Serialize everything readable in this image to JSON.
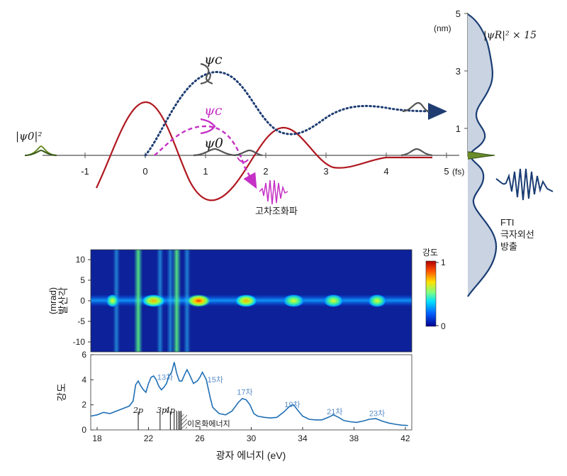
{
  "diagram": {
    "psi0_squared_label": "|ψ0|²",
    "time_axis": {
      "tick_labels": [
        "-1",
        "0",
        "1",
        "2",
        "3",
        "4",
        "5"
      ],
      "unit": "(fs)"
    },
    "labels": {
      "psi_c_upper": "ψc",
      "psi_c_lower": "ψc",
      "psi_0": "ψ0",
      "hhg": "고차조화파",
      "psi_r": "|ψR|² × 15",
      "fti_line1": "FTI",
      "fti_line2": "극자외선",
      "fti_line3": "방출"
    },
    "radial_axis": {
      "unit": "(nm)",
      "tick_labels": [
        "5",
        "3",
        "1"
      ]
    }
  },
  "spectrogram": {
    "ylabel": "발산각",
    "yunit": "(mrad)",
    "ytick_labels": [
      "10",
      "5",
      "0",
      "-5",
      "-10"
    ],
    "colorbar": {
      "title": "강도",
      "max_label": "1",
      "min_label": "0",
      "colors": [
        "#00008f",
        "#0060ff",
        "#00e0ff",
        "#7fff7f",
        "#ffe000",
        "#ff5000",
        "#b00000"
      ]
    },
    "harmonic_spot_energies_eV": [
      19.2,
      22.4,
      25.9,
      29.6,
      33.3,
      36.4,
      39.8
    ],
    "bright_lines_eV": [
      21.2,
      24.2
    ]
  },
  "chart_data": {
    "type": "line",
    "ylabel": "강도",
    "xlabel": "광자 에너지 (eV)",
    "xlim": [
      17.5,
      42.5
    ],
    "ylim": [
      0,
      6
    ],
    "x_ticks": [
      18,
      22,
      26,
      30,
      34,
      38,
      42
    ],
    "y_ticks": [
      0,
      2,
      4,
      6
    ],
    "x": [
      17.5,
      18,
      18.5,
      19,
      19.5,
      20,
      20.5,
      20.8,
      21,
      21.2,
      21.4,
      21.6,
      21.8,
      22,
      22.2,
      22.4,
      22.6,
      22.8,
      23,
      23.2,
      23.4,
      23.6,
      23.8,
      24,
      24.2,
      24.4,
      24.6,
      24.8,
      25,
      25.2,
      25.5,
      25.8,
      26,
      26.2,
      26.5,
      26.8,
      27,
      27.5,
      28,
      28.5,
      29,
      29.3,
      29.6,
      29.9,
      30.2,
      30.5,
      31,
      31.5,
      32,
      32.5,
      33,
      33.3,
      33.6,
      34,
      34.5,
      35,
      35.5,
      36,
      36.4,
      36.8,
      37.2,
      37.7,
      38.2,
      38.7,
      39.2,
      39.7,
      40.2,
      40.7,
      41.2,
      41.7,
      42.2
    ],
    "y": [
      1.1,
      1.2,
      1.4,
      1.3,
      1.5,
      1.7,
      1.9,
      2.3,
      3.6,
      3.9,
      3.5,
      3.2,
      3.0,
      3.7,
      4.2,
      4.3,
      4.0,
      3.5,
      3.2,
      3.4,
      3.7,
      4.3,
      4.6,
      5.4,
      4.5,
      3.9,
      3.9,
      4.4,
      4.8,
      4.4,
      3.7,
      3.9,
      4.2,
      4.6,
      4.0,
      2.6,
      1.8,
      1.3,
      1.2,
      1.5,
      2.2,
      2.5,
      2.4,
      2.0,
      1.3,
      1.1,
      1.0,
      0.95,
      1.0,
      1.4,
      1.9,
      2.0,
      1.6,
      1.1,
      0.85,
      0.8,
      0.8,
      1.0,
      1.2,
      1.0,
      0.75,
      0.65,
      0.6,
      0.7,
      0.85,
      0.9,
      0.7,
      0.55,
      0.45,
      0.38,
      0.35
    ],
    "annotations": [
      {
        "text": "13차",
        "x": 23.3,
        "y": 4.0
      },
      {
        "text": "15차",
        "x": 27.2,
        "y": 3.8
      },
      {
        "text": "17차",
        "x": 29.5,
        "y": 2.8
      },
      {
        "text": "19차",
        "x": 33.2,
        "y": 1.8
      },
      {
        "text": "21차",
        "x": 36.5,
        "y": 1.25
      },
      {
        "text": "23차",
        "x": 39.8,
        "y": 1.1
      }
    ],
    "level_markers": {
      "labels": [
        "2p",
        "3p",
        "4p",
        "···",
        "이온화에너지"
      ],
      "line_energies_eV": [
        21.2,
        22.9,
        23.7,
        24.0,
        24.2,
        24.35,
        24.45,
        24.55
      ]
    }
  }
}
